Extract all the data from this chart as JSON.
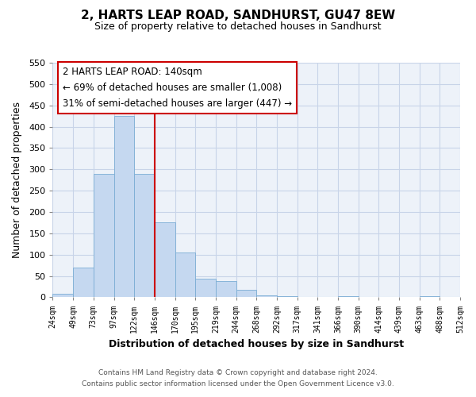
{
  "title": "2, HARTS LEAP ROAD, SANDHURST, GU47 8EW",
  "subtitle": "Size of property relative to detached houses in Sandhurst",
  "bar_values": [
    8,
    70,
    290,
    425,
    290,
    175,
    105,
    43,
    38,
    18,
    5,
    2,
    0,
    0,
    2,
    0,
    0,
    0,
    3,
    0
  ],
  "bin_labels": [
    "24sqm",
    "49sqm",
    "73sqm",
    "97sqm",
    "122sqm",
    "146sqm",
    "170sqm",
    "195sqm",
    "219sqm",
    "244sqm",
    "268sqm",
    "292sqm",
    "317sqm",
    "341sqm",
    "366sqm",
    "390sqm",
    "414sqm",
    "439sqm",
    "463sqm",
    "488sqm",
    "512sqm"
  ],
  "bar_color": "#c5d8f0",
  "bar_edge_color": "#7aadd4",
  "marker_line_x_label": "146sqm",
  "marker_line_color": "#cc0000",
  "xlabel": "Distribution of detached houses by size in Sandhurst",
  "ylabel": "Number of detached properties",
  "ylim": [
    0,
    550
  ],
  "yticks": [
    0,
    50,
    100,
    150,
    200,
    250,
    300,
    350,
    400,
    450,
    500,
    550
  ],
  "annotation_title": "2 HARTS LEAP ROAD: 140sqm",
  "annotation_line1": "← 69% of detached houses are smaller (1,008)",
  "annotation_line2": "31% of semi-detached houses are larger (447) →",
  "annotation_box_color": "#ffffff",
  "annotation_box_edge": "#cc0000",
  "footer_line1": "Contains HM Land Registry data © Crown copyright and database right 2024.",
  "footer_line2": "Contains public sector information licensed under the Open Government Licence v3.0.",
  "grid_color": "#c8d4e8",
  "background_color": "#edf2f9"
}
